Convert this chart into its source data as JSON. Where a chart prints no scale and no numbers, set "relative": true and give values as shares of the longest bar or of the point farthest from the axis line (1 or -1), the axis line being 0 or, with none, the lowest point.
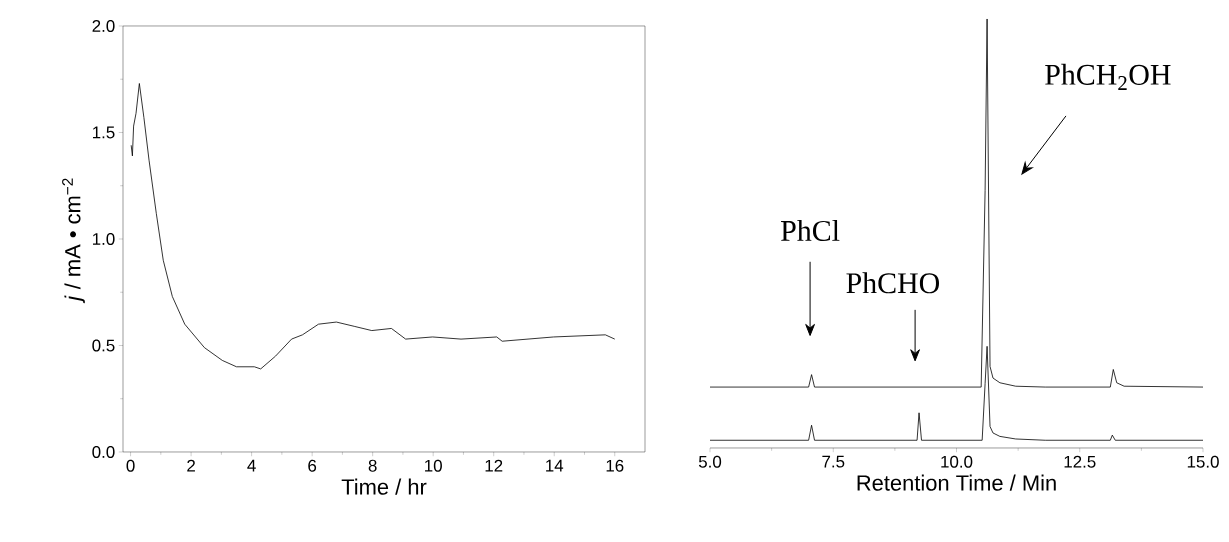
{
  "chart_data": [
    {
      "type": "line",
      "xlabel": "Time / hr",
      "ylabel": "*j* / mA • cm$^{−2}$",
      "color": "#000000",
      "x": [
        0.02,
        0.06,
        0.1,
        0.18,
        0.29,
        0.44,
        0.61,
        0.85,
        1.08,
        1.38,
        1.79,
        2.44,
        3.03,
        3.5,
        4.09,
        4.3,
        4.79,
        5.32,
        5.68,
        6.21,
        6.8,
        7.39,
        7.97,
        8.62,
        9.09,
        9.98,
        10.92,
        12.1,
        12.28,
        13.98,
        15.69,
        16.0
      ],
      "values": [
        1.44,
        1.39,
        1.53,
        1.59,
        1.73,
        1.57,
        1.37,
        1.12,
        0.9,
        0.73,
        0.6,
        0.49,
        0.43,
        0.4,
        0.4,
        0.39,
        0.45,
        0.53,
        0.55,
        0.6,
        0.61,
        0.59,
        0.57,
        0.58,
        0.53,
        0.54,
        0.53,
        0.54,
        0.52,
        0.54,
        0.55,
        0.53
      ],
      "xlim": [
        -0.25,
        17
      ],
      "ylim": [
        0,
        2
      ],
      "xticks": [
        0,
        2,
        4,
        6,
        8,
        10,
        12,
        14,
        16
      ],
      "yticks": [
        {
          "value": 0,
          "label": "0.0"
        },
        {
          "value": 0.5,
          "label": "0.5"
        },
        {
          "value": 1,
          "label": "1.0"
        },
        {
          "value": 1.5,
          "label": "1.5"
        },
        {
          "value": 2,
          "label": "2.0"
        }
      ]
    },
    {
      "type": "line",
      "relative": true,
      "xlabel": "Retention Time / Min",
      "xlim": [
        5,
        15
      ],
      "xticks": [
        {
          "value": 5,
          "label": "5.0"
        },
        {
          "value": 7.5,
          "label": "7.5"
        },
        {
          "value": 10,
          "label": "10.0"
        },
        {
          "value": 12.5,
          "label": "12.5"
        },
        {
          "value": 15,
          "label": "15.0"
        }
      ],
      "series": [
        {
          "color": "#000000",
          "x": [
            5.0,
            7.0,
            7.06,
            7.12,
            10.5,
            10.58,
            10.62,
            10.68,
            10.74,
            10.88,
            11.2,
            11.8,
            13.12,
            13.18,
            13.25,
            13.4,
            15.0
          ],
          "values": [
            0.142,
            0.142,
            0.171,
            0.142,
            0.142,
            0.6,
            1.0,
            0.19,
            0.163,
            0.152,
            0.144,
            0.142,
            0.142,
            0.183,
            0.152,
            0.144,
            0.142
          ]
        },
        {
          "color": "#000000",
          "x": [
            5.0,
            7.0,
            7.06,
            7.12,
            9.2,
            9.24,
            9.29,
            10.52,
            10.58,
            10.62,
            10.68,
            10.74,
            10.88,
            11.2,
            11.8,
            13.12,
            13.16,
            13.22,
            15.0
          ],
          "values": [
            0.018,
            0.018,
            0.053,
            0.018,
            0.018,
            0.082,
            0.018,
            0.018,
            0.15,
            0.237,
            0.05,
            0.035,
            0.027,
            0.021,
            0.018,
            0.018,
            0.03,
            0.018,
            0.018
          ]
        }
      ],
      "annotations": [
        "PhCl",
        "PhCHO",
        "PhCH$_{2}$OH"
      ]
    }
  ]
}
